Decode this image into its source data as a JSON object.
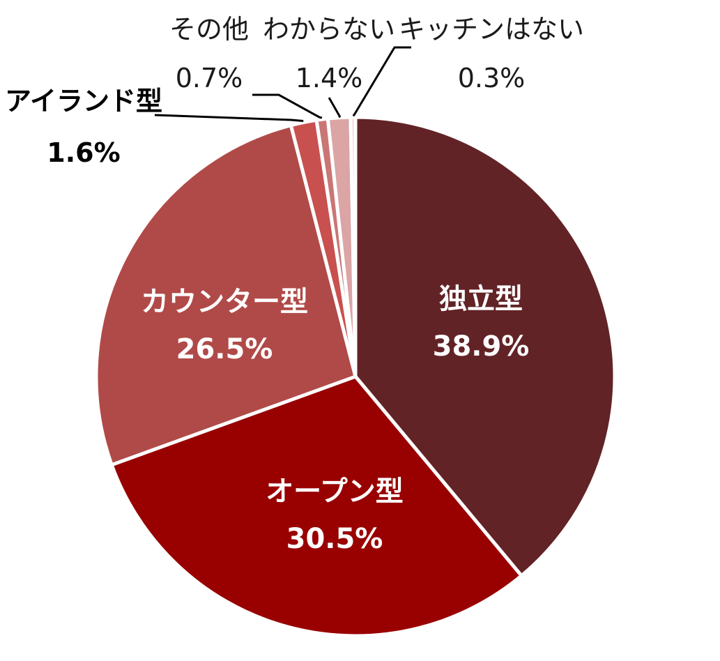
{
  "chart_data": {
    "type": "pie",
    "start": "12 o'clock",
    "direction": "clockwise",
    "slices": [
      {
        "label": "独立型",
        "value": 38.9,
        "value_text": "38.9%",
        "color": "#622326"
      },
      {
        "label": "オープン型",
        "value": 30.5,
        "value_text": "30.5%",
        "color": "#990000"
      },
      {
        "label": "カウンター型",
        "value": 26.5,
        "value_text": "26.5%",
        "color": "#B04A48"
      },
      {
        "label": "アイランド型",
        "value": 1.6,
        "value_text": "1.6%",
        "color": "#C8504E"
      },
      {
        "label": "その他",
        "value": 0.7,
        "value_text": "0.7%",
        "color": "#C97675"
      },
      {
        "label": "わからない",
        "value": 1.4,
        "value_text": "1.4%",
        "color": "#DBA4A5"
      },
      {
        "label": "キッチンはない",
        "value": 0.3,
        "value_text": "0.3%",
        "color": "#F1D8D8"
      }
    ]
  }
}
